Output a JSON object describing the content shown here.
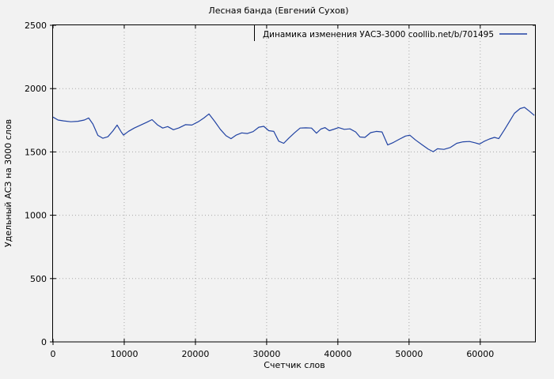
{
  "title": "Лесная банда (Евгений Сухов)",
  "colors": {
    "background": "#f2f2f2",
    "frame": "#000000",
    "grid": "#a9a9a9",
    "line": "#2143a3",
    "text": "#000000"
  },
  "chart_data": {
    "type": "line",
    "title": "Лесная банда (Евгений Сухов)",
    "xlabel": "Счетчик слов",
    "ylabel": "Удельный АСЗ на 3000 слов",
    "legend": [
      "Динамика изменения УАСЗ-3000 coollib.net/b/701495"
    ],
    "legend_position": "top-right-inside-box",
    "grid": true,
    "xlim": [
      0,
      67800
    ],
    "ylim": [
      0,
      2500
    ],
    "x_ticks": [
      0,
      10000,
      20000,
      30000,
      40000,
      50000,
      60000
    ],
    "y_ticks": [
      0,
      500,
      1000,
      1500,
      2000,
      2500
    ],
    "series": [
      {
        "name": "Динамика изменения УАСЗ-3000 coollib.net/b/701495",
        "color": "#2143a3",
        "points": [
          [
            0,
            1775
          ],
          [
            700,
            1752
          ],
          [
            1500,
            1745
          ],
          [
            2500,
            1738
          ],
          [
            3500,
            1742
          ],
          [
            4400,
            1752
          ],
          [
            5000,
            1768
          ],
          [
            5600,
            1720
          ],
          [
            6300,
            1630
          ],
          [
            7000,
            1608
          ],
          [
            7700,
            1620
          ],
          [
            8400,
            1665
          ],
          [
            9000,
            1712
          ],
          [
            9600,
            1655
          ],
          [
            9900,
            1633
          ],
          [
            10600,
            1663
          ],
          [
            11400,
            1688
          ],
          [
            12300,
            1712
          ],
          [
            13200,
            1735
          ],
          [
            13900,
            1755
          ],
          [
            14700,
            1712
          ],
          [
            15400,
            1688
          ],
          [
            16100,
            1700
          ],
          [
            16900,
            1675
          ],
          [
            17700,
            1690
          ],
          [
            18600,
            1715
          ],
          [
            19500,
            1712
          ],
          [
            20400,
            1738
          ],
          [
            21200,
            1768
          ],
          [
            21900,
            1800
          ],
          [
            22700,
            1742
          ],
          [
            23500,
            1678
          ],
          [
            24300,
            1628
          ],
          [
            25000,
            1605
          ],
          [
            25700,
            1632
          ],
          [
            26500,
            1650
          ],
          [
            27300,
            1645
          ],
          [
            28100,
            1660
          ],
          [
            28900,
            1695
          ],
          [
            29600,
            1702
          ],
          [
            30300,
            1668
          ],
          [
            31000,
            1662
          ],
          [
            31700,
            1585
          ],
          [
            32400,
            1568
          ],
          [
            33100,
            1608
          ],
          [
            33900,
            1650
          ],
          [
            34700,
            1688
          ],
          [
            35500,
            1690
          ],
          [
            36300,
            1688
          ],
          [
            37000,
            1648
          ],
          [
            37600,
            1680
          ],
          [
            38200,
            1692
          ],
          [
            38800,
            1668
          ],
          [
            39500,
            1680
          ],
          [
            40100,
            1692
          ],
          [
            40900,
            1678
          ],
          [
            41700,
            1682
          ],
          [
            42500,
            1658
          ],
          [
            43100,
            1618
          ],
          [
            43800,
            1615
          ],
          [
            44600,
            1652
          ],
          [
            45400,
            1662
          ],
          [
            46200,
            1658
          ],
          [
            47000,
            1555
          ],
          [
            47800,
            1575
          ],
          [
            48700,
            1602
          ],
          [
            49500,
            1625
          ],
          [
            50100,
            1632
          ],
          [
            50900,
            1595
          ],
          [
            51800,
            1558
          ],
          [
            52700,
            1522
          ],
          [
            53400,
            1502
          ],
          [
            54000,
            1525
          ],
          [
            54900,
            1520
          ],
          [
            55800,
            1535
          ],
          [
            56700,
            1568
          ],
          [
            57600,
            1580
          ],
          [
            58500,
            1582
          ],
          [
            59300,
            1572
          ],
          [
            59900,
            1562
          ],
          [
            60500,
            1582
          ],
          [
            61300,
            1602
          ],
          [
            62000,
            1615
          ],
          [
            62600,
            1605
          ],
          [
            63400,
            1675
          ],
          [
            64100,
            1740
          ],
          [
            64800,
            1805
          ],
          [
            65600,
            1842
          ],
          [
            66200,
            1852
          ],
          [
            66900,
            1822
          ],
          [
            67600,
            1788
          ]
        ]
      }
    ]
  }
}
